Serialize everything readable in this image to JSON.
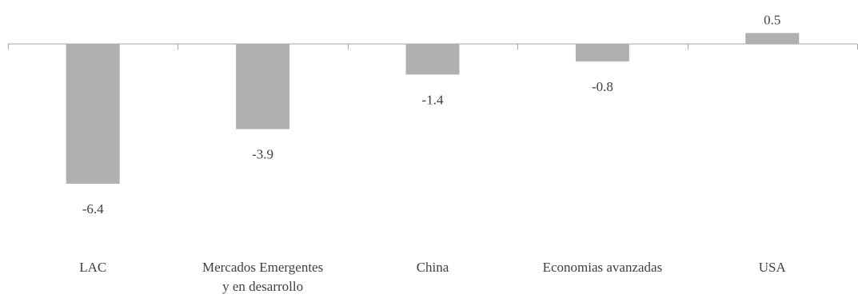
{
  "chart_data": {
    "type": "bar",
    "title": "",
    "xlabel": "",
    "ylabel": "",
    "categories": [
      [
        "LAC"
      ],
      [
        "Mercados Emergentes",
        "y en desarrollo"
      ],
      [
        "China"
      ],
      [
        "Economias avanzadas"
      ],
      [
        "USA"
      ]
    ],
    "values": [
      -6.4,
      -3.9,
      -1.4,
      -0.8,
      0.5
    ],
    "data_labels": [
      "-6.4",
      "-3.9",
      "-1.4",
      "-0.8",
      "0.5"
    ],
    "ylim": [
      -6.4,
      0.5
    ],
    "grid": false,
    "legend": "none",
    "bar_color": "#b0b0b0",
    "axis_color": "#a6a6a6"
  }
}
